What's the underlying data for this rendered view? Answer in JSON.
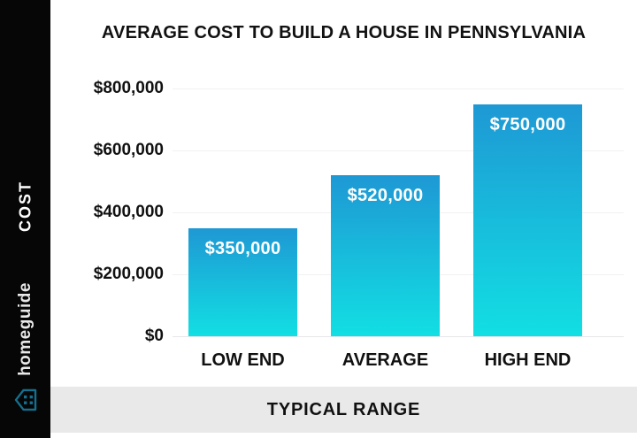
{
  "title": "AVERAGE COST TO BUILD A HOUSE IN PENNSYLVANIA",
  "sidebar": {
    "axis_label": "COST",
    "brand_name": "homeguide"
  },
  "footer": {
    "label": "TYPICAL RANGE"
  },
  "colors": {
    "bar_gradient_top": "#1E98D4",
    "bar_gradient_bottom": "#12DFE3",
    "sidebar_bg": "#060606",
    "footer_bg": "#e9e9e9",
    "brand_icon_teal": "#156f8e",
    "text_dark": "#111111",
    "bar_value_text": "#ffffff"
  },
  "chart_data": {
    "type": "bar",
    "title": "AVERAGE COST TO BUILD A HOUSE IN PENNSYLVANIA",
    "categories": [
      "LOW END",
      "AVERAGE",
      "HIGH END"
    ],
    "values": [
      350000,
      520000,
      750000
    ],
    "value_labels": [
      "$350,000",
      "$520,000",
      "$750,000"
    ],
    "ylabel": "COST",
    "xlabel": "TYPICAL RANGE",
    "ylim": [
      0,
      800000
    ],
    "yticks": [
      {
        "value": 0,
        "label": "$0"
      },
      {
        "value": 200000,
        "label": "$200,000"
      },
      {
        "value": 400000,
        "label": "$400,000"
      },
      {
        "value": 600000,
        "label": "$600,000"
      },
      {
        "value": 800000,
        "label": "$800,000"
      }
    ],
    "grid": true,
    "legend": false
  }
}
